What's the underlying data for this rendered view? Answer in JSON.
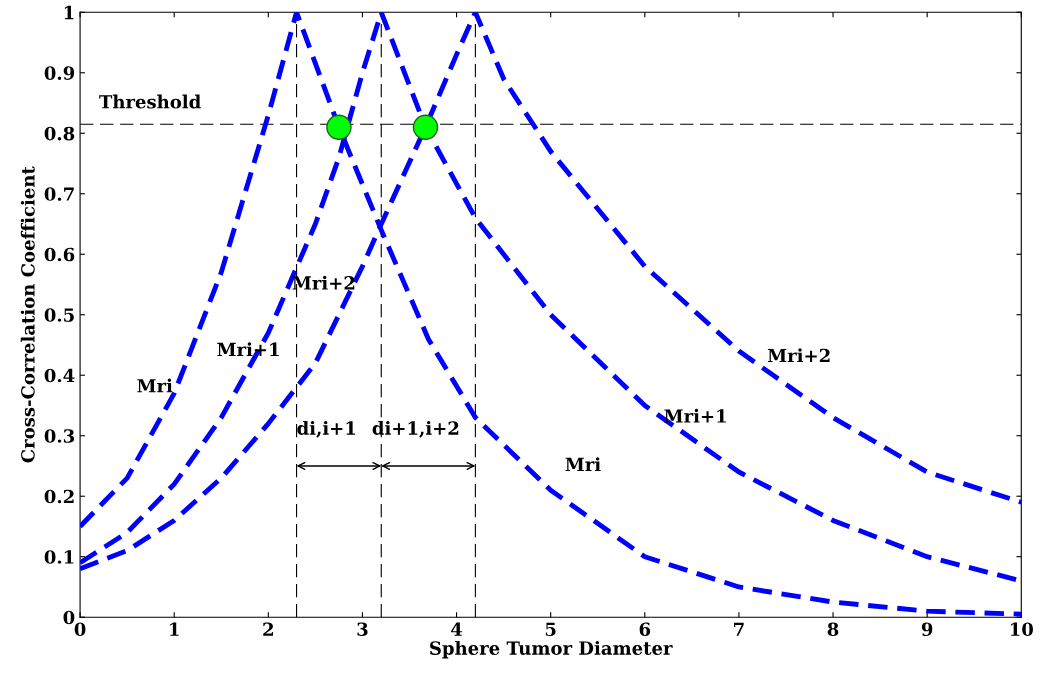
{
  "chart_data": {
    "type": "line",
    "xlabel": "Sphere Tumor Diameter",
    "ylabel": "Cross-Correlation Coefficient",
    "xlim": [
      0,
      10
    ],
    "ylim": [
      0,
      1
    ],
    "xticks": [
      0,
      1,
      2,
      3,
      4,
      5,
      6,
      7,
      8,
      9,
      10
    ],
    "yticks": [
      0,
      0.1,
      0.2,
      0.3,
      0.4,
      0.5,
      0.6,
      0.7,
      0.8,
      0.9,
      1
    ],
    "grid": false,
    "legend": false,
    "line_style": "dashed",
    "marker": "none",
    "series": [
      {
        "color": "#0000ff",
        "x": [
          0,
          0.5,
          1,
          1.5,
          2,
          2.3,
          2.75,
          3.2,
          3.7,
          4.2,
          5,
          6,
          7,
          8,
          9,
          10
        ],
        "values": [
          0.15,
          0.23,
          0.37,
          0.57,
          0.83,
          1.0,
          0.81,
          0.64,
          0.46,
          0.33,
          0.21,
          0.1,
          0.05,
          0.025,
          0.01,
          0.005
        ]
      },
      {
        "color": "#0000ff",
        "x": [
          0,
          0.5,
          1,
          1.5,
          2,
          2.5,
          2.75,
          3,
          3.2,
          3.67,
          4.2,
          5,
          6,
          7,
          8,
          9,
          10
        ],
        "values": [
          0.09,
          0.14,
          0.22,
          0.33,
          0.47,
          0.65,
          0.76,
          0.9,
          1.0,
          0.81,
          0.66,
          0.5,
          0.35,
          0.24,
          0.16,
          0.1,
          0.06
        ]
      },
      {
        "color": "#0000ff",
        "x": [
          0,
          0.5,
          1,
          1.5,
          2,
          2.5,
          3,
          3.2,
          3.67,
          4,
          4.2,
          4.5,
          5,
          6,
          7,
          8,
          9,
          10
        ],
        "values": [
          0.08,
          0.11,
          0.16,
          0.23,
          0.32,
          0.42,
          0.58,
          0.65,
          0.81,
          0.93,
          1.0,
          0.89,
          0.77,
          0.58,
          0.44,
          0.33,
          0.24,
          0.19
        ]
      },
      {
        "type": "scatter",
        "color": "#00ff00",
        "marker": "circle",
        "x": [
          2.75,
          3.67
        ],
        "values": [
          0.81,
          0.81
        ]
      }
    ],
    "ref_lines": [
      {
        "axis": "y",
        "value": 0.815,
        "label": "Threshold",
        "color": "#000000",
        "line_style": "dashed"
      },
      {
        "axis": "x",
        "value": 2.3,
        "color": "#000000",
        "line_style": "dashed"
      },
      {
        "axis": "x",
        "value": 3.2,
        "color": "#000000",
        "line_style": "dashed"
      },
      {
        "axis": "x",
        "value": 4.2,
        "color": "#000000",
        "line_style": "dashed"
      }
    ],
    "annotations": [
      "Mri",
      "Mri+1",
      "Mri+2",
      "di,i+1",
      "di+1,i+2",
      "Mri",
      "Mri+1",
      "Mri+2"
    ]
  }
}
